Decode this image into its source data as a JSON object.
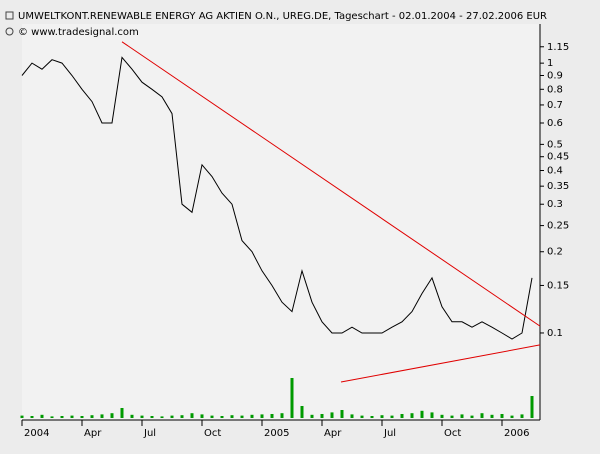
{
  "chart_data": {
    "type": "line",
    "title": "UMWELTKONT.RENEWABLE ENERGY AG AKTIEN O.N., UREG.DE, Tageschart - 02.01.2004 - 27.02.2006 EUR",
    "subtitle": "© www.tradesignal.com",
    "categories": [
      "2004",
      null,
      null,
      null,
      null,
      null,
      "Apr",
      null,
      null,
      null,
      null,
      null,
      "Jul",
      null,
      null,
      null,
      null,
      null,
      "Oct",
      null,
      null,
      null,
      null,
      null,
      "2005",
      null,
      null,
      null,
      null,
      null,
      "Apr",
      null,
      null,
      null,
      null,
      null,
      "Jul",
      null,
      null,
      null,
      null,
      null,
      "Oct",
      null,
      null,
      null,
      null,
      null,
      "2006",
      null,
      null,
      null
    ],
    "series": [
      {
        "color": "#000000",
        "values": [
          0.9,
          1.0,
          0.95,
          1.03,
          1.0,
          0.9,
          0.8,
          0.72,
          0.6,
          0.6,
          1.05,
          0.95,
          0.85,
          0.8,
          0.75,
          0.65,
          0.3,
          0.28,
          0.42,
          0.38,
          0.33,
          0.3,
          0.22,
          0.2,
          0.17,
          0.15,
          0.13,
          0.12,
          0.17,
          0.13,
          0.11,
          0.1,
          0.1,
          0.105,
          0.1,
          0.1,
          0.1,
          0.105,
          0.11,
          0.12,
          0.14,
          0.16,
          0.125,
          0.11,
          0.11,
          0.105,
          0.11,
          0.105,
          0.1,
          0.095,
          0.1,
          0.16
        ]
      }
    ],
    "volume": {
      "color": "#009a00",
      "values": [
        6,
        5,
        8,
        4,
        5,
        6,
        5,
        7,
        9,
        12,
        25,
        8,
        6,
        5,
        4,
        6,
        7,
        12,
        9,
        6,
        5,
        7,
        6,
        8,
        9,
        10,
        12,
        100,
        30,
        8,
        10,
        14,
        20,
        9,
        6,
        5,
        7,
        6,
        10,
        12,
        18,
        14,
        8,
        6,
        9,
        6,
        12,
        8,
        10,
        6,
        9,
        55
      ]
    },
    "trendlines": [
      {
        "color": "#e00000",
        "x": [
          10,
          51.8
        ],
        "y": [
          1.2,
          0.106
        ]
      },
      {
        "color": "#e00000",
        "x": [
          31.9,
          51.8
        ],
        "y": [
          0.0658,
          0.0903
        ]
      }
    ],
    "log_scale": true,
    "ylim": [
      0.0484,
      1.47
    ],
    "yticks": [
      1.15,
      1,
      0.9,
      0.8,
      0.7,
      0.6,
      0.5,
      0.45,
      0.4,
      0.35,
      0.3,
      0.25,
      0.2,
      0.15,
      0.1
    ]
  }
}
